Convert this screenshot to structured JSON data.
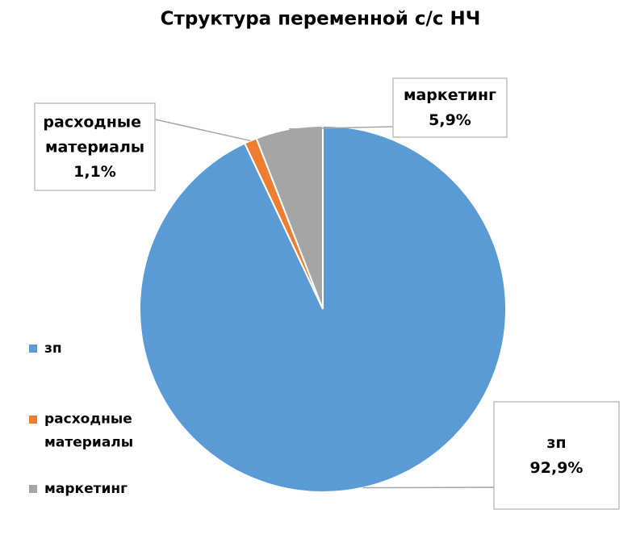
{
  "chart_data": {
    "type": "pie",
    "title": "Структура переменной с/с НЧ",
    "categories": [
      "зп",
      "расходные материалы",
      "маркетинг"
    ],
    "values": [
      92.9,
      1.1,
      5.9
    ],
    "value_labels": [
      "92,9%",
      "1,1%",
      "5,9%"
    ],
    "colors": [
      "#5b9bd5",
      "#ed7d31",
      "#a5a5a5"
    ],
    "legend": "left"
  }
}
